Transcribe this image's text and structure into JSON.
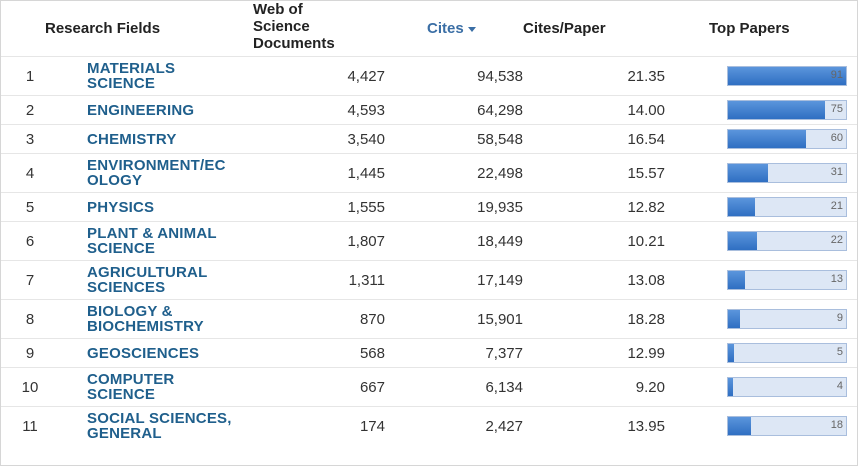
{
  "table": {
    "header": {
      "rank": null,
      "field": "Research Fields",
      "docs": "Web of Science Documents",
      "cites": "Cites",
      "cites_per_paper": "Cites/Paper",
      "top_papers": "Top Papers"
    },
    "rows": [
      {
        "rank": "1",
        "field": "MATERIALS SCIENCE",
        "docs": "4,427",
        "cites": "94,538",
        "cites_per_paper": "21.35",
        "top_papers": 91
      },
      {
        "rank": "2",
        "field": "ENGINEERING",
        "docs": "4,593",
        "cites": "64,298",
        "cites_per_paper": "14.00",
        "top_papers": 75
      },
      {
        "rank": "3",
        "field": "CHEMISTRY",
        "docs": "3,540",
        "cites": "58,548",
        "cites_per_paper": "16.54",
        "top_papers": 60
      },
      {
        "rank": "4",
        "field": "ENVIRONMENT/ECOLOGY",
        "docs": "1,445",
        "cites": "22,498",
        "cites_per_paper": "15.57",
        "top_papers": 31
      },
      {
        "rank": "5",
        "field": "PHYSICS",
        "docs": "1,555",
        "cites": "19,935",
        "cites_per_paper": "12.82",
        "top_papers": 21
      },
      {
        "rank": "6",
        "field": "PLANT & ANIMAL SCIENCE",
        "docs": "1,807",
        "cites": "18,449",
        "cites_per_paper": "10.21",
        "top_papers": 22
      },
      {
        "rank": "7",
        "field": "AGRICULTURAL SCIENCES",
        "docs": "1,311",
        "cites": "17,149",
        "cites_per_paper": "13.08",
        "top_papers": 13
      },
      {
        "rank": "8",
        "field": "BIOLOGY & BIOCHEMISTRY",
        "docs": "870",
        "cites": "15,901",
        "cites_per_paper": "18.28",
        "top_papers": 9
      },
      {
        "rank": "9",
        "field": "GEOSCIENCES",
        "docs": "568",
        "cites": "7,377",
        "cites_per_paper": "12.99",
        "top_papers": 5
      },
      {
        "rank": "10",
        "field": "COMPUTER SCIENCE",
        "docs": "667",
        "cites": "6,134",
        "cites_per_paper": "9.20",
        "top_papers": 4
      },
      {
        "rank": "11",
        "field": "SOCIAL SCIENCES, GENERAL",
        "docs": "174",
        "cites": "2,427",
        "cites_per_paper": "13.95",
        "top_papers": 18
      }
    ]
  }
}
